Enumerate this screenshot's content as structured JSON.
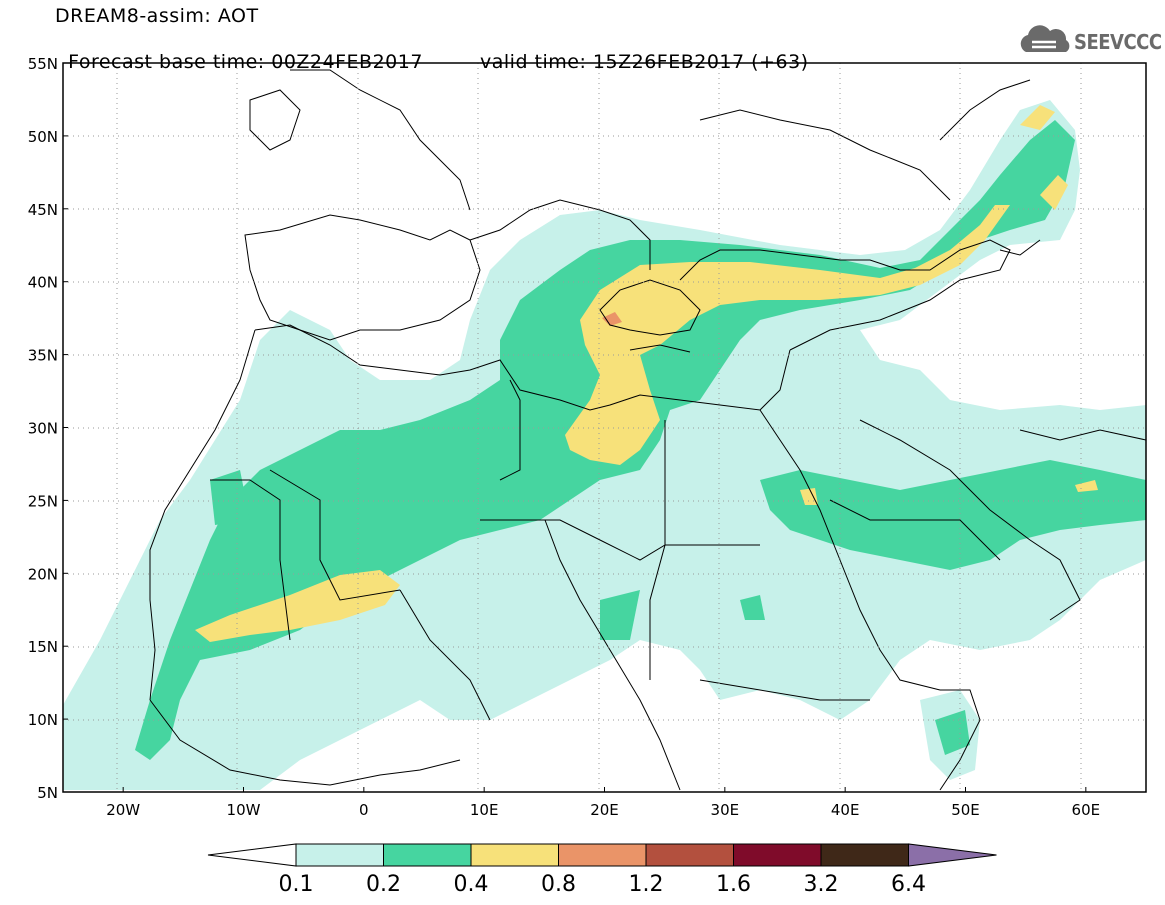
{
  "header": {
    "line1": "DREAM8-assim: AOT",
    "line2_base": "Forecast base time: 00Z24FEB2017",
    "line2_valid": "valid time: 15Z26FEB2017 (+63)"
  },
  "logo": {
    "text": "SEEVCCC",
    "icon": "cloud-icon",
    "color": "#6a6a6a"
  },
  "map": {
    "lat_labels": [
      "55N",
      "50N",
      "45N",
      "40N",
      "35N",
      "30N",
      "25N",
      "20N",
      "15N",
      "10N",
      "5N"
    ],
    "lon_labels": [
      "20W",
      "10W",
      "0",
      "10E",
      "20E",
      "30E",
      "40E",
      "50E",
      "60E"
    ],
    "lat_range": [
      5,
      55
    ],
    "lon_range": [
      -25,
      65
    ],
    "grid": "dotted",
    "colors": {
      "land_border": "#000000",
      "grid": "#9a9a9a"
    }
  },
  "colorbar": {
    "labels": [
      "0.1",
      "0.2",
      "0.4",
      "0.8",
      "1.2",
      "1.6",
      "3.2",
      "6.4"
    ],
    "colors": [
      "#c7f1ea",
      "#46d5a0",
      "#f7e17a",
      "#ea9468",
      "#b3503e",
      "#7f0b2a",
      "#3f2818",
      "#8b6fa8"
    ]
  }
}
